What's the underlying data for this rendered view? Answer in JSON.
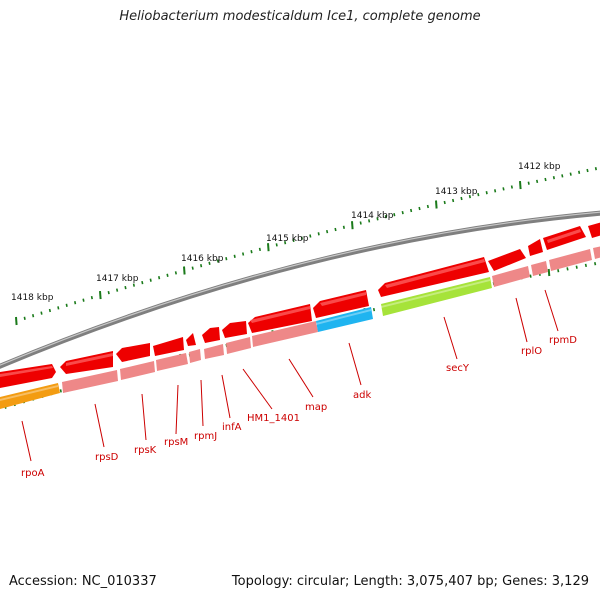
{
  "title": "Heliobacterium modesticaldum Ice1, complete genome",
  "accession": "Accession: NC_010337",
  "topology": "Topology: circular; Length: 3,075,407 bp; Genes: 3,129",
  "colors": {
    "backbone": "#808080",
    "tick": "#1a7a1a",
    "gene_forward": "#ee0000",
    "gene_shadow": "#ee8888",
    "gene_orange": "#f39c12",
    "gene_blue": "#1fb4f0",
    "gene_green": "#a6e33a",
    "label": "#cc0000"
  },
  "kbp_labels": [
    "1418 kbp",
    "1417 kbp",
    "1416 kbp",
    "1415 kbp",
    "1414 kbp",
    "1413 kbp",
    "1412 kbp"
  ],
  "genes": [
    "rpoA",
    "rpsD",
    "rpsK",
    "rpsM",
    "rpmJ",
    "infA",
    "HM1_1401",
    "map",
    "adk",
    "secY",
    "rplO",
    "rpmD"
  ]
}
